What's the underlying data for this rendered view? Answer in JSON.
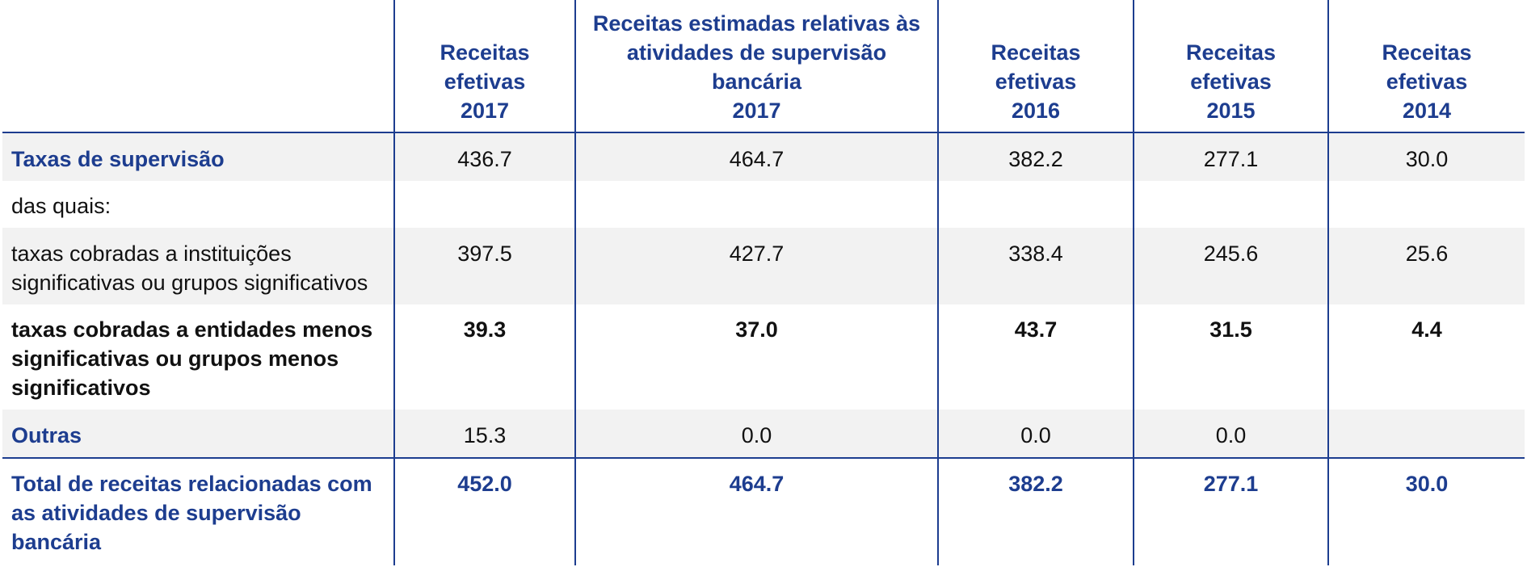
{
  "table": {
    "headers": [
      "",
      "Receitas\nefetivas\n2017",
      "Receitas estimadas relativas às\natividades de supervisão\nbancária\n2017",
      "Receitas\nefetivas\n2016",
      "Receitas\nefetivas\n2015",
      "Receitas\nefetivas\n2014"
    ],
    "rows": [
      {
        "label": "Taxas de supervisão",
        "values": [
          "436.7",
          "464.7",
          "382.2",
          "277.1",
          "30.0"
        ]
      },
      {
        "label": "das quais:",
        "values": [
          "",
          "",
          "",
          "",
          ""
        ]
      },
      {
        "label": "taxas cobradas a instituições significativas ou grupos significativos",
        "values": [
          "397.5",
          "427.7",
          "338.4",
          "245.6",
          "25.6"
        ]
      },
      {
        "label": "taxas cobradas a entidades menos significativas ou grupos menos significativos",
        "values": [
          "39.3",
          "37.0",
          "43.7",
          "31.5",
          "4.4"
        ]
      },
      {
        "label": "Outras",
        "values": [
          "15.3",
          "0.0",
          "0.0",
          "0.0",
          ""
        ]
      },
      {
        "label": "Total de receitas relacionadas com as atividades de supervisão bancária",
        "values": [
          "452.0",
          "464.7",
          "382.2",
          "277.1",
          "30.0"
        ]
      }
    ],
    "colors": {
      "accent": "#1d3d8f",
      "shade": "#f2f2f2"
    }
  }
}
